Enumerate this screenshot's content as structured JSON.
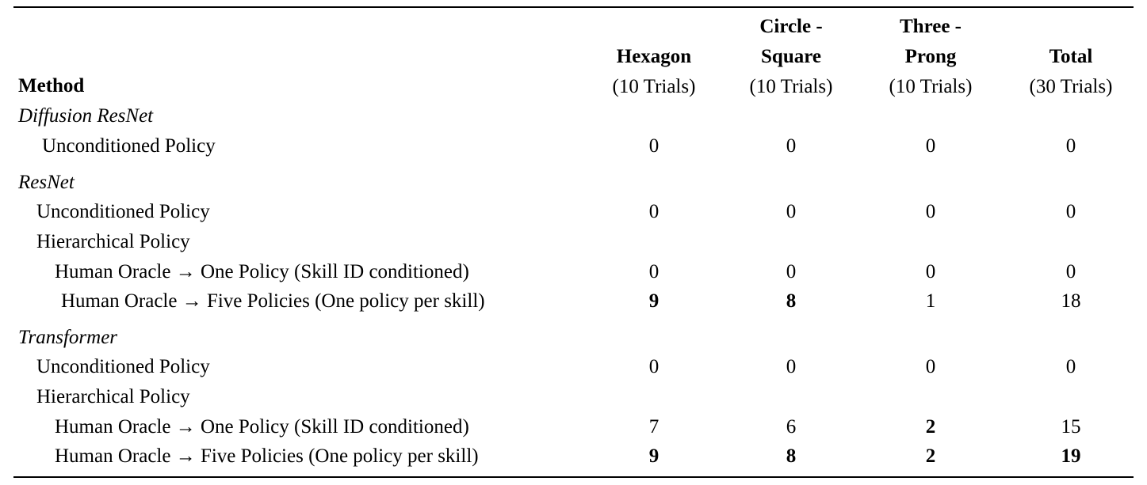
{
  "header": {
    "method": "Method",
    "columns": [
      {
        "title_lines": [
          "Hexagon"
        ],
        "sub": "(10 Trials)"
      },
      {
        "title_lines": [
          "Circle -",
          "Square"
        ],
        "sub": "(10 Trials)"
      },
      {
        "title_lines": [
          "Three -",
          "Prong"
        ],
        "sub": "(10 Trials)"
      },
      {
        "title_lines": [
          "Total"
        ],
        "sub": "(30 Trials)"
      }
    ]
  },
  "rows": [
    {
      "label": "Diffusion ResNet",
      "style": "group",
      "values": []
    },
    {
      "label": "Unconditioned Policy",
      "style": "sub1",
      "values": [
        "0",
        "0",
        "0",
        "0"
      ],
      "bold": [
        false,
        false,
        false,
        false
      ]
    },
    {
      "label": "ResNet",
      "style": "group",
      "values": []
    },
    {
      "label": "Unconditioned Policy",
      "style": "sub1",
      "values": [
        "0",
        "0",
        "0",
        "0"
      ],
      "bold": [
        false,
        false,
        false,
        false
      ]
    },
    {
      "label": "Hierarchical Policy",
      "style": "sub1",
      "values": []
    },
    {
      "label": "Human Oracle → One Policy (Skill ID conditioned)",
      "style": "sub2",
      "values": [
        "0",
        "0",
        "0",
        "0"
      ],
      "bold": [
        false,
        false,
        false,
        false
      ]
    },
    {
      "label": "Human Oracle → Five Policies (One policy per skill)",
      "style": "sub2",
      "values": [
        "9",
        "8",
        "1",
        "18"
      ],
      "bold": [
        true,
        true,
        false,
        false
      ]
    },
    {
      "label": "Transformer",
      "style": "group",
      "values": []
    },
    {
      "label": "Unconditioned Policy",
      "style": "sub1",
      "values": [
        "0",
        "0",
        "0",
        "0"
      ],
      "bold": [
        false,
        false,
        false,
        false
      ]
    },
    {
      "label": "Hierarchical Policy",
      "style": "sub1",
      "values": []
    },
    {
      "label": "Human Oracle → One Policy (Skill ID conditioned)",
      "style": "sub2",
      "values": [
        "7",
        "6",
        "2",
        "15"
      ],
      "bold": [
        false,
        false,
        true,
        false
      ]
    },
    {
      "label": "Human Oracle → Five Policies (One policy per skill)",
      "style": "sub2",
      "values": [
        "9",
        "8",
        "2",
        "19"
      ],
      "bold": [
        true,
        true,
        true,
        true
      ]
    }
  ]
}
